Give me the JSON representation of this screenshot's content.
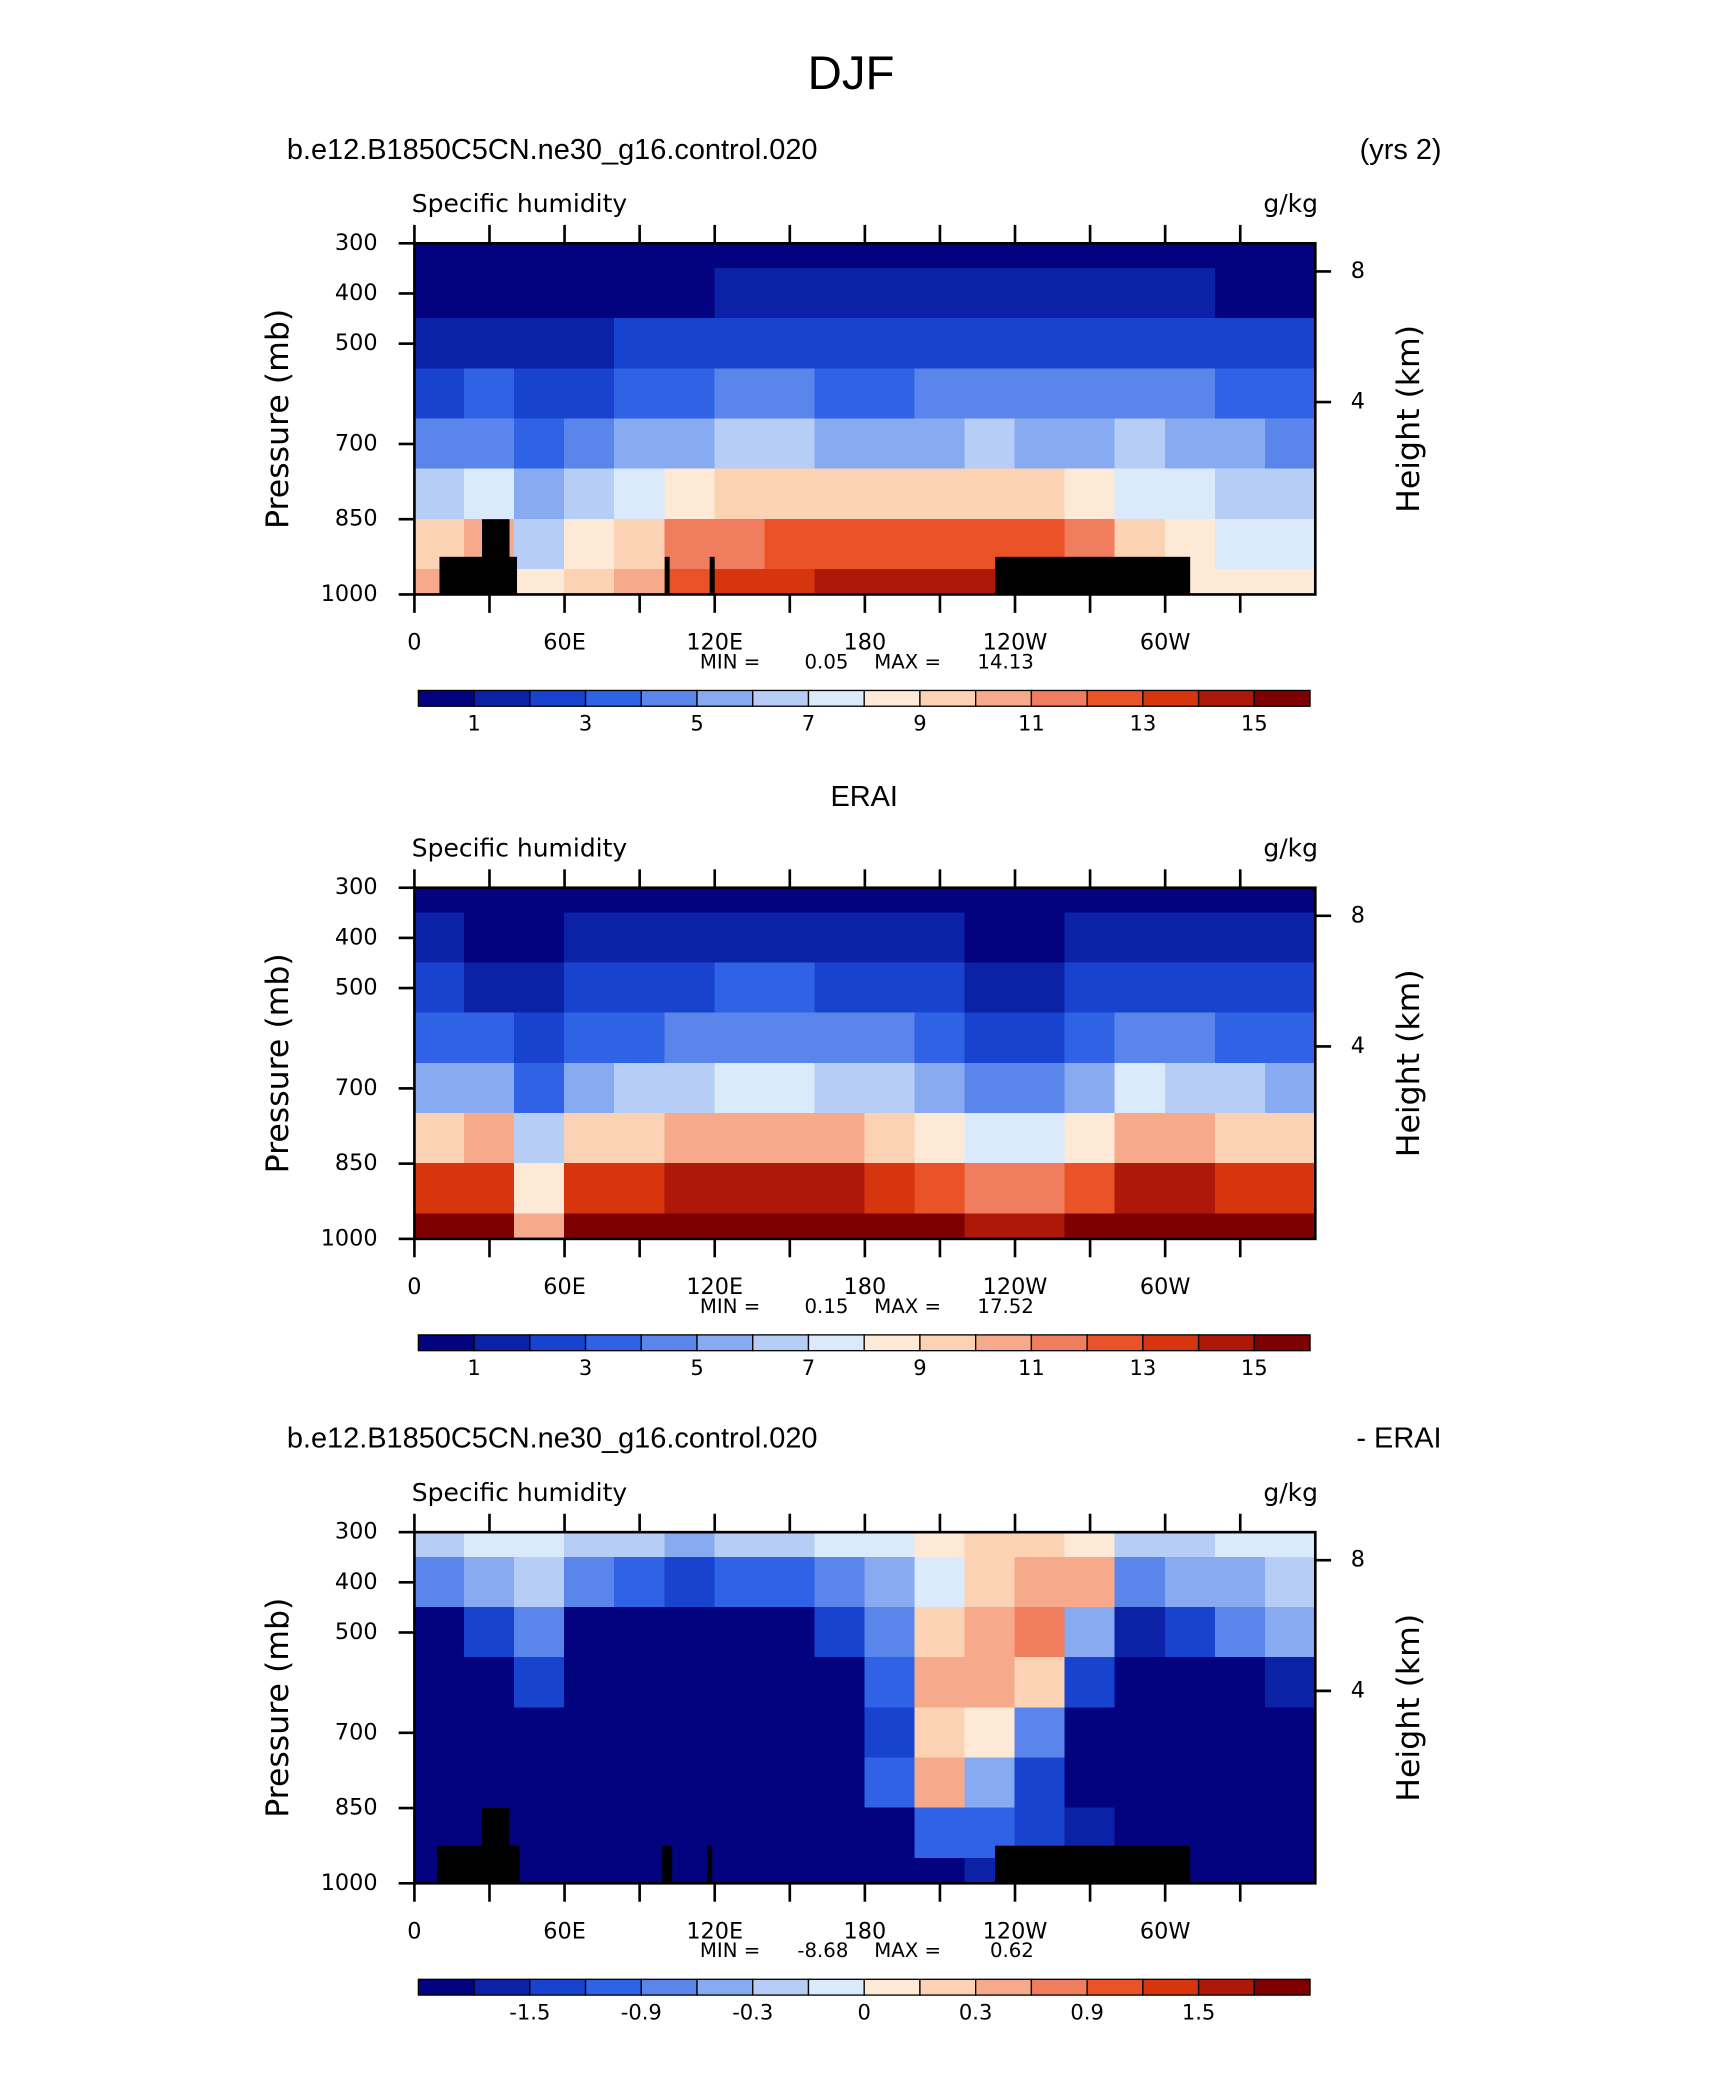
{
  "title": "DJF",
  "chart_data": [
    {
      "type": "contour",
      "title_left": "b.e12.B1850C5CN.ne30_g16.control.020",
      "title_right": "(yrs 2)",
      "subtitle_left": "Specific humidity",
      "subtitle_right": "g/kg",
      "ylabel": "Pressure (mb)",
      "y2label": "Height (km)",
      "y2scale": "standard-atmosphere",
      "xlim": [
        0,
        360
      ],
      "ylim": [
        300,
        1000
      ],
      "xticks": [
        0,
        {
          "value": 60,
          "label": "60E"
        },
        {
          "value": 120,
          "label": "120E"
        },
        180,
        {
          "value": 240,
          "label": "120W"
        },
        {
          "value": 300,
          "label": "60W"
        }
      ],
      "xminorticks": [
        30,
        90,
        150,
        210,
        270,
        330
      ],
      "yticks": [
        300,
        400,
        500,
        700,
        850,
        1000
      ],
      "y2ticks": [
        4,
        8
      ],
      "min_label": "MIN =",
      "min": 0.05,
      "max_label": "MAX =",
      "max": 14.13,
      "levels": [
        1,
        2,
        3,
        4,
        5,
        6,
        7,
        8,
        9,
        10,
        11,
        12,
        13,
        14,
        15
      ],
      "cbar_ticks": [
        1,
        3,
        5,
        7,
        9,
        11,
        13,
        15
      ],
      "colors": [
        "#03037f",
        "#0b22a6",
        "#1843cf",
        "#2f62e4",
        "#5a86ec",
        "#88aaf1",
        "#b6cdf5",
        "#dbeafb",
        "#fde9d6",
        "#fbd2b4",
        "#f7aa8b",
        "#f07d5d",
        "#ea5327",
        "#d6350e",
        "#ad1809",
        "#7f0000"
      ],
      "mask_color": "#000000",
      "masks": [
        {
          "lon": [
            10,
            41
          ],
          "top": 925
        },
        {
          "lon": [
            27,
            38
          ],
          "top": 850
        },
        {
          "lon": [
            100,
            102
          ],
          "top": 925
        },
        {
          "lon": [
            118,
            120
          ],
          "top": 925
        },
        {
          "lon": [
            232,
            310
          ],
          "top": 925
        }
      ],
      "lon": [
        10,
        30,
        50,
        70,
        90,
        110,
        130,
        150,
        170,
        190,
        210,
        230,
        250,
        270,
        290,
        310,
        330,
        350
      ],
      "pressure": [
        300,
        400,
        500,
        600,
        700,
        800,
        900,
        1000
      ],
      "values": [
        [
          0.3,
          0.3,
          0.3,
          0.3,
          0.3,
          0.4,
          0.5,
          0.5,
          0.4,
          0.4,
          0.4,
          0.5,
          0.5,
          0.4,
          0.4,
          0.4,
          0.3,
          0.3
        ],
        [
          0.7,
          0.8,
          0.6,
          0.7,
          0.8,
          0.9,
          1.2,
          1.2,
          1.0,
          1.0,
          1.1,
          1.2,
          1.2,
          1.1,
          1.0,
          1.0,
          0.9,
          0.8
        ],
        [
          1.8,
          1.6,
          1.3,
          1.8,
          2.2,
          2.6,
          2.8,
          2.8,
          2.5,
          2.5,
          2.6,
          2.7,
          2.6,
          2.6,
          2.6,
          2.7,
          2.4,
          2.0
        ],
        [
          2.8,
          3.0,
          2.0,
          2.8,
          3.3,
          3.8,
          4.2,
          4.2,
          3.8,
          3.8,
          4.0,
          4.2,
          4.0,
          4.0,
          4.3,
          4.0,
          3.5,
          3.0
        ],
        [
          4,
          4.5,
          3.5,
          4.5,
          5,
          5.8,
          6,
          6.2,
          5.6,
          5.6,
          5.8,
          6,
          5.8,
          5.8,
          6.2,
          5.8,
          5,
          4.5
        ],
        [
          6.5,
          7,
          5.5,
          6.5,
          7.5,
          8.5,
          9,
          9.5,
          9,
          9,
          9,
          9,
          9,
          8.8,
          7.5,
          7,
          6.5,
          6
        ],
        [
          9,
          10,
          6,
          8.5,
          9.5,
          11,
          11.5,
          12,
          12.5,
          12.5,
          12.5,
          12.5,
          12,
          11.5,
          9,
          8,
          7.5,
          7.5
        ],
        [
          10,
          11,
          8,
          9.5,
          10.5,
          12.5,
          13,
          13.5,
          14,
          14,
          14,
          14,
          13.5,
          13,
          9.5,
          8.5,
          8.5,
          8.5
        ]
      ]
    },
    {
      "type": "contour",
      "title": "ERAI",
      "subtitle_left": "Specific humidity",
      "subtitle_right": "g/kg",
      "ylabel": "Pressure (mb)",
      "y2label": "Height (km)",
      "y2scale": "standard-atmosphere",
      "xlim": [
        0,
        360
      ],
      "ylim": [
        300,
        1000
      ],
      "xticks": [
        0,
        {
          "value": 60,
          "label": "60E"
        },
        {
          "value": 120,
          "label": "120E"
        },
        180,
        {
          "value": 240,
          "label": "120W"
        },
        {
          "value": 300,
          "label": "60W"
        }
      ],
      "xminorticks": [
        30,
        90,
        150,
        210,
        270,
        330
      ],
      "yticks": [
        300,
        400,
        500,
        700,
        850,
        1000
      ],
      "y2ticks": [
        4,
        8
      ],
      "min_label": "MIN =",
      "min": 0.15,
      "max_label": "MAX =",
      "max": 17.52,
      "levels": [
        1,
        2,
        3,
        4,
        5,
        6,
        7,
        8,
        9,
        10,
        11,
        12,
        13,
        14,
        15
      ],
      "cbar_ticks": [
        1,
        3,
        5,
        7,
        9,
        11,
        13,
        15
      ],
      "colors": [
        "#03037f",
        "#0b22a6",
        "#1843cf",
        "#2f62e4",
        "#5a86ec",
        "#88aaf1",
        "#b6cdf5",
        "#dbeafb",
        "#fde9d6",
        "#fbd2b4",
        "#f7aa8b",
        "#f07d5d",
        "#ea5327",
        "#d6350e",
        "#ad1809",
        "#7f0000"
      ],
      "lon": [
        10,
        30,
        50,
        70,
        90,
        110,
        130,
        150,
        170,
        190,
        210,
        230,
        250,
        270,
        290,
        310,
        330,
        350
      ],
      "pressure": [
        300,
        400,
        500,
        600,
        700,
        800,
        900,
        1000
      ],
      "values": [
        [
          0.4,
          0.3,
          0.3,
          0.4,
          0.6,
          0.7,
          0.8,
          0.8,
          0.7,
          0.6,
          0.5,
          0.4,
          0.4,
          0.4,
          0.7,
          0.6,
          0.4,
          0.5
        ],
        [
          1.0,
          0.8,
          0.7,
          1.0,
          1.2,
          1.4,
          1.5,
          1.5,
          1.4,
          1.2,
          1.1,
          0.9,
          0.9,
          1.0,
          1.4,
          1.3,
          1.1,
          1.0
        ],
        [
          2.2,
          1.8,
          1.3,
          2,
          2.4,
          2.8,
          3,
          3,
          2.8,
          2.6,
          2.2,
          1.8,
          1.8,
          2,
          2.8,
          2.6,
          2.3,
          2.2
        ],
        [
          3.6,
          3.2,
          2.2,
          3.4,
          3.8,
          4.2,
          4.5,
          4.6,
          4.3,
          4,
          3.5,
          2.8,
          2.8,
          3.2,
          4.4,
          4,
          3.8,
          3.6
        ],
        [
          5.5,
          5.5,
          3.5,
          5.5,
          6,
          6.5,
          7,
          7,
          6.8,
          6.3,
          5.5,
          4.5,
          4.5,
          5,
          7,
          6.5,
          6,
          5.8
        ],
        [
          9.5,
          10,
          6,
          9,
          9.5,
          10,
          10.5,
          10.5,
          10,
          9.5,
          8.5,
          7.5,
          7.5,
          8,
          10.5,
          10,
          9.5,
          9.5
        ],
        [
          13.5,
          13.5,
          8,
          13,
          13.5,
          14,
          14.5,
          14.5,
          14,
          13.5,
          12.5,
          11.5,
          11.5,
          12,
          14.5,
          14,
          13.5,
          13.5
        ],
        [
          16,
          16,
          10,
          16,
          16.5,
          16.5,
          17,
          17.3,
          17,
          16.5,
          15.5,
          14.5,
          14.5,
          15,
          17,
          16.5,
          16,
          16
        ]
      ]
    },
    {
      "type": "contour",
      "title_left": "b.e12.B1850C5CN.ne30_g16.control.020",
      "title_right": "- ERAI",
      "subtitle_left": "Specific humidity",
      "subtitle_right": "g/kg",
      "ylabel": "Pressure (mb)",
      "y2label": "Height (km)",
      "y2scale": "standard-atmosphere",
      "xlim": [
        0,
        360
      ],
      "ylim": [
        300,
        1000
      ],
      "xticks": [
        0,
        {
          "value": 60,
          "label": "60E"
        },
        {
          "value": 120,
          "label": "120E"
        },
        180,
        {
          "value": 240,
          "label": "120W"
        },
        {
          "value": 300,
          "label": "60W"
        }
      ],
      "xminorticks": [
        30,
        90,
        150,
        210,
        270,
        330
      ],
      "yticks": [
        300,
        400,
        500,
        700,
        850,
        1000
      ],
      "y2ticks": [
        4,
        8
      ],
      "min_label": "MIN =",
      "min": -8.68,
      "max_label": "MAX =",
      "max": 0.62,
      "levels": [
        -1.8,
        -1.5,
        -1.2,
        -0.9,
        -0.6,
        -0.3,
        -0.1,
        0,
        0.1,
        0.3,
        0.6,
        0.9,
        1.2,
        1.5,
        1.8
      ],
      "cbar_ticks": [
        -1.5,
        -0.9,
        -0.3,
        0,
        0.3,
        0.9,
        1.5
      ],
      "colors": [
        "#03037f",
        "#0b22a6",
        "#1843cf",
        "#2f62e4",
        "#5a86ec",
        "#88aaf1",
        "#b6cdf5",
        "#dbeafb",
        "#fde9d6",
        "#fbd2b4",
        "#f7aa8b",
        "#f07d5d",
        "#ea5327",
        "#d6350e",
        "#ad1809",
        "#7f0000"
      ],
      "mask_color": "#000000",
      "masks": [
        {
          "lon": [
            9,
            42
          ],
          "top": 925
        },
        {
          "lon": [
            27,
            38
          ],
          "top": 850
        },
        {
          "lon": [
            99,
            103
          ],
          "top": 925
        },
        {
          "lon": [
            117,
            119
          ],
          "top": 925
        },
        {
          "lon": [
            232,
            310
          ],
          "top": 925
        }
      ],
      "lon": [
        10,
        30,
        50,
        70,
        90,
        110,
        130,
        150,
        170,
        190,
        210,
        230,
        250,
        270,
        290,
        310,
        330,
        350
      ],
      "pressure": [
        300,
        400,
        500,
        600,
        700,
        800,
        900,
        1000
      ],
      "values": [
        [
          -0.3,
          -0.1,
          -0.1,
          -0.3,
          -0.3,
          -0.4,
          -0.3,
          -0.2,
          -0.1,
          -0.1,
          0,
          0.1,
          0.2,
          0,
          -0.2,
          -0.2,
          -0.1,
          -0.1
        ],
        [
          -0.8,
          -0.5,
          -0.3,
          -0.8,
          -1,
          -1.3,
          -1.2,
          -1,
          -0.8,
          -0.4,
          -0.1,
          0.2,
          0.5,
          0.3,
          -0.8,
          -0.6,
          -0.4,
          -0.3
        ],
        [
          -2,
          -1.5,
          -0.8,
          -2,
          -2.2,
          -2.5,
          -2.3,
          -2,
          -1.5,
          -0.7,
          0.1,
          0.4,
          0.6,
          -0.6,
          -1.6,
          -1.3,
          -0.9,
          -0.6
        ],
        [
          -2.5,
          -2.5,
          -1.5,
          -2.5,
          -2.5,
          -2.8,
          -2.5,
          -2.5,
          -2,
          -1.2,
          0.3,
          0.5,
          0.2,
          -1.5,
          -2.5,
          -2.5,
          -2,
          -1.8
        ],
        [
          -3,
          -3,
          -2.5,
          -3,
          -3,
          -3,
          -3,
          -3,
          -2.5,
          -1.5,
          0.2,
          0,
          -0.8,
          -2.5,
          -3,
          -3,
          -3,
          -3
        ],
        [
          -3,
          -3,
          -3,
          -3,
          -3,
          -3,
          -3,
          -3,
          -3,
          -1.2,
          0.3,
          -0.5,
          -1.5,
          -3,
          -3,
          -3,
          -3,
          -3
        ],
        [
          -4,
          -4,
          -4,
          -4,
          -4,
          -4,
          -4,
          -4,
          -3.5,
          -2,
          -1,
          -1.2,
          -1.3,
          -1.8,
          -3.5,
          -4,
          -4,
          -4
        ],
        [
          -5,
          -5,
          -5,
          -5,
          -5,
          -5,
          -5,
          -5,
          -5,
          -3,
          -2,
          -1.8,
          -2,
          -3,
          -5,
          -5,
          -5,
          -5
        ]
      ]
    }
  ]
}
